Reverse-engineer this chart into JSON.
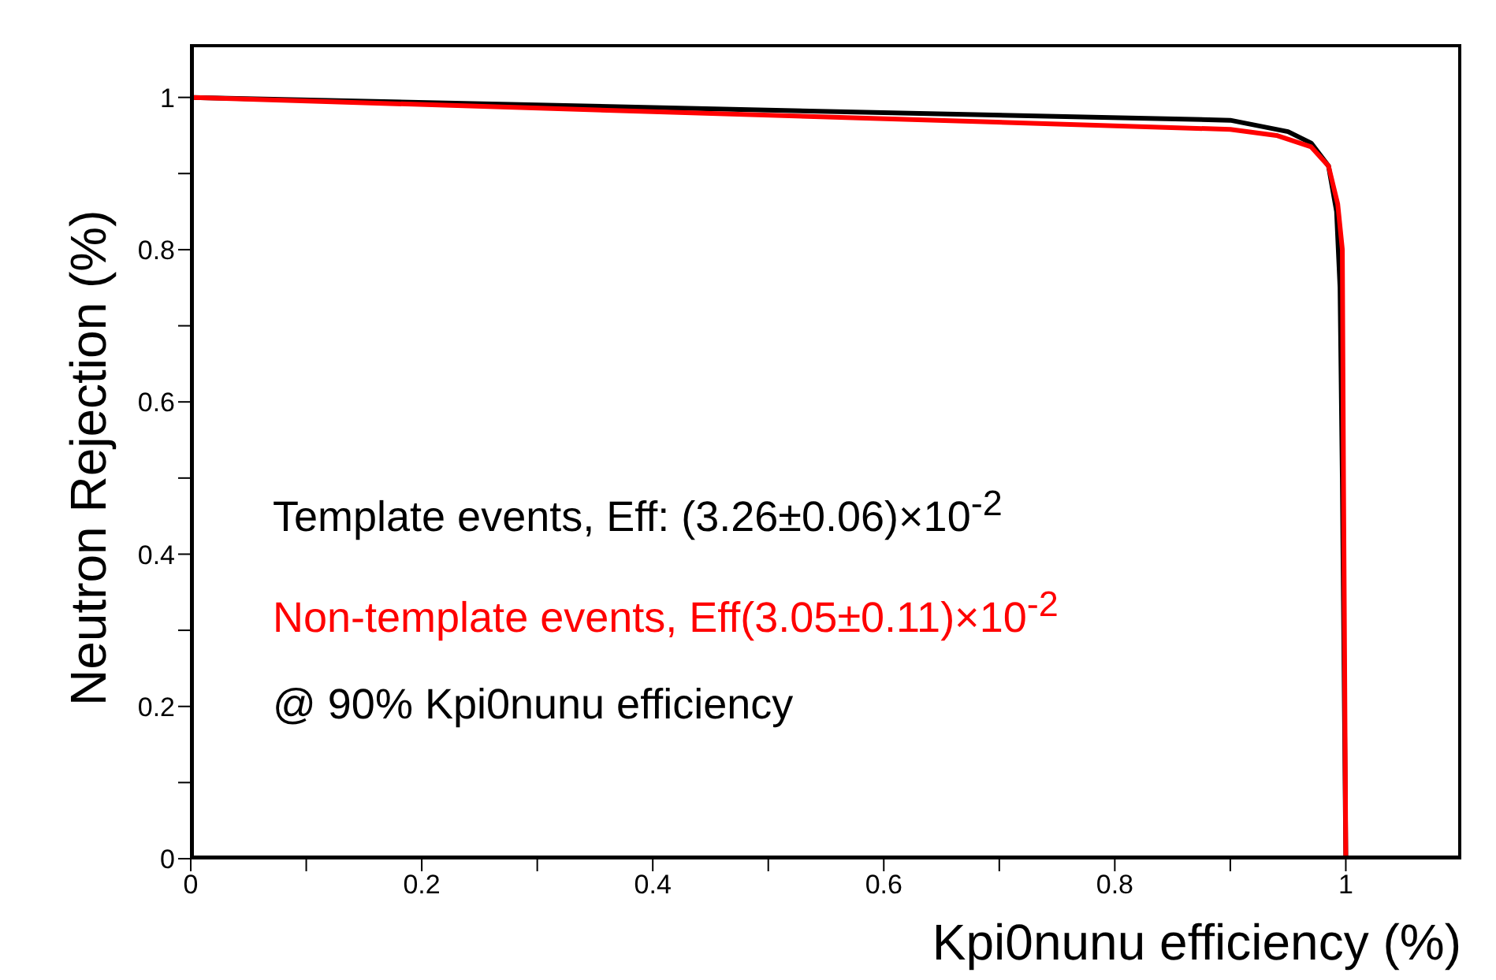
{
  "chart_data": {
    "type": "line",
    "xlabel": "Kpi0nunu efficiency (%)",
    "ylabel": "Neutron Rejection (%)",
    "xlim": [
      0,
      1.1
    ],
    "ylim": [
      0,
      1.07
    ],
    "xticks": [
      0,
      {
        "value": 0.1,
        "label": null
      },
      0.2,
      {
        "value": 0.3,
        "label": null
      },
      0.4,
      {
        "value": 0.5,
        "label": null
      },
      0.6,
      {
        "value": 0.7,
        "label": null
      },
      0.8,
      {
        "value": 0.9,
        "label": null
      },
      1
    ],
    "yticks": [
      0,
      {
        "value": 0.1,
        "label": null
      },
      0.2,
      {
        "value": 0.3,
        "label": null
      },
      0.4,
      {
        "value": 0.5,
        "label": null
      },
      0.6,
      {
        "value": 0.7,
        "label": null
      },
      0.8,
      {
        "value": 0.9,
        "label": null
      },
      1
    ],
    "legend": "bottom left",
    "grid": false,
    "marker": "none",
    "line_style": "solid",
    "series": [
      {
        "name": "Template events, Eff: (3.26±0.06)×10$^{-2}$",
        "color": "#000000",
        "x": [
          0,
          0.9,
          0.95,
          0.97,
          0.985,
          0.992,
          0.995,
          0.997,
          1
        ],
        "values": [
          1.0,
          0.97,
          0.955,
          0.94,
          0.91,
          0.85,
          0.75,
          0.5,
          0
        ]
      },
      {
        "name": "Non-template events, Eff(3.05±0.11)×10$^{-2}$",
        "color": "#ff0000",
        "x": [
          0,
          0.9,
          0.94,
          0.97,
          0.985,
          0.993,
          0.997,
          0.998,
          1
        ],
        "values": [
          1.0,
          0.958,
          0.95,
          0.935,
          0.91,
          0.86,
          0.8,
          0.5,
          0
        ]
      }
    ],
    "annotations": [
      "@ 90% Kpi0nunu efficiency"
    ]
  }
}
